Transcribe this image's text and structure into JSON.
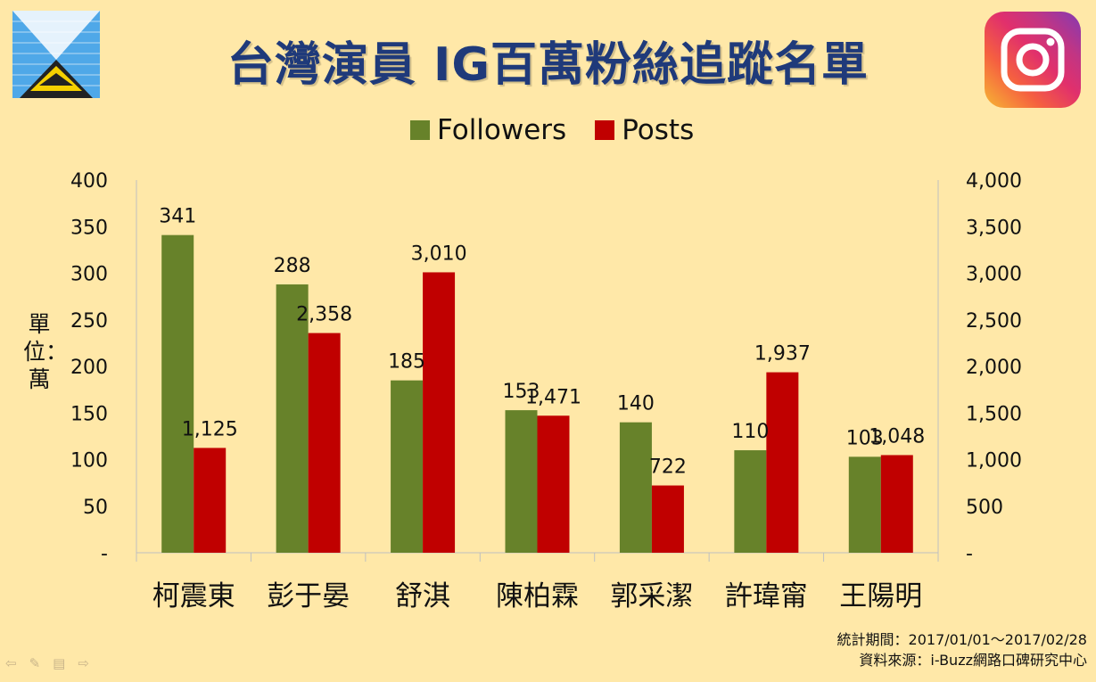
{
  "page": {
    "title": "台灣演員 IG百萬粉絲追蹤名單",
    "ylabel_left": "單位：萬",
    "footer": {
      "period": "統計期間：2017/01/01～2017/02/28",
      "source": "資料來源：i-Buzz網路口碑研究中心"
    },
    "icons": {
      "left_logo": "i-buzz-logo-icon",
      "right_logo": "instagram-icon",
      "nav": [
        "arrow-left-icon",
        "pen-icon",
        "menu-icon",
        "arrow-right-icon"
      ]
    },
    "colors": {
      "followers": "#67822A",
      "posts": "#C00000",
      "background": "#FFE8A8",
      "title": "#1F3A7A"
    }
  },
  "chart_data": {
    "type": "bar",
    "title": "台灣演員 IG百萬粉絲追蹤名單",
    "categories": [
      "柯震東",
      "彭于晏",
      "舒淇",
      "陳柏霖",
      "郭采潔",
      "許瑋甯",
      "王陽明"
    ],
    "series": [
      {
        "name": "Followers",
        "axis": "left",
        "values": [
          341,
          288,
          185,
          153,
          140,
          110,
          103
        ],
        "labels": [
          "341",
          "288",
          "185",
          "153",
          "140",
          "110",
          "103"
        ]
      },
      {
        "name": "Posts",
        "axis": "right",
        "values": [
          1125,
          2358,
          3010,
          1471,
          722,
          1937,
          1048
        ],
        "labels": [
          "1,125",
          "2,358",
          "3,010",
          "1,471",
          "722",
          "1,937",
          "1,048"
        ]
      }
    ],
    "ylabel": "單位：萬",
    "ylim": [
      0,
      400
    ],
    "ylim_right": [
      0,
      4000
    ],
    "yticks_left": [
      "-",
      "50",
      "100",
      "150",
      "200",
      "250",
      "300",
      "350",
      "400"
    ],
    "yticks_right": [
      "-",
      "500",
      "1,000",
      "1,500",
      "2,000",
      "2,500",
      "3,000",
      "3,500",
      "4,000"
    ],
    "legend_position": "top",
    "grid": false
  }
}
